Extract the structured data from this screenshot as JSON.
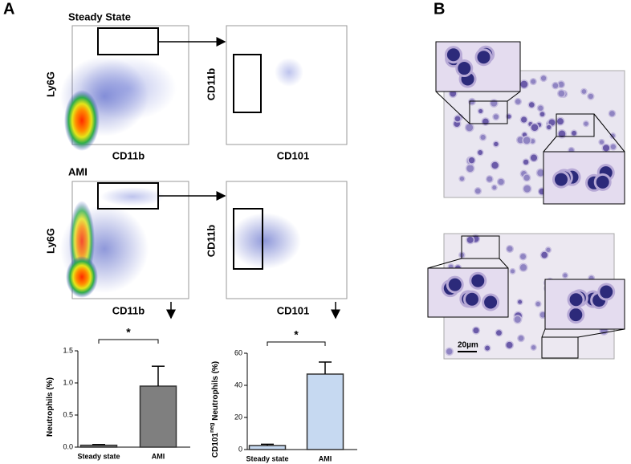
{
  "panels": {
    "a": "A",
    "b": "B"
  },
  "flow": {
    "steady_title": "Steady State",
    "ami_title": "AMI",
    "ly6g": "Ly6G",
    "cd11b": "CD11b",
    "cd101": "CD101"
  },
  "scale_bar": "20µm",
  "chart_data": [
    {
      "type": "bar",
      "ylabel": "Neutrophils (%)",
      "categories": [
        "Steady state",
        "AMI"
      ],
      "values": [
        0.03,
        0.95
      ],
      "errors": [
        0.01,
        0.31
      ],
      "color": "#7f7f7f",
      "ylim": [
        0,
        1.5
      ],
      "yticks": [
        {
          "value": 0,
          "label": "0.0"
        },
        0.5,
        {
          "value": 1,
          "label": "1.0"
        },
        1.5
      ],
      "significance": "*"
    },
    {
      "type": "bar",
      "ylabel": "CD101",
      "ylabel_sup": "neg",
      "ylabel_rest": " Neutrophils (%)",
      "categories": [
        "Steady state",
        "AMI"
      ],
      "values": [
        2.5,
        47
      ],
      "errors": [
        0.8,
        7.5
      ],
      "color": "#c6d9f1",
      "ylim": [
        0,
        60
      ],
      "yticks": [
        0,
        20,
        40,
        60
      ],
      "significance": "*"
    }
  ]
}
